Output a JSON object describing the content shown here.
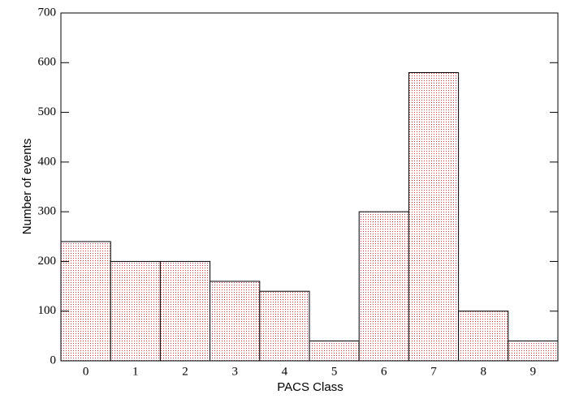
{
  "chart_data": {
    "type": "bar",
    "x_label": "PACS Class",
    "y_label": "Number of events",
    "categories": [
      "0",
      "1",
      "2",
      "3",
      "4",
      "5",
      "6",
      "7",
      "8",
      "9"
    ],
    "values": [
      240,
      200,
      200,
      160,
      140,
      40,
      300,
      580,
      100,
      40
    ],
    "color": "#c83232",
    "ylim": [
      0,
      700
    ],
    "yticks": [
      0,
      100,
      200,
      300,
      400,
      500,
      600,
      700
    ]
  }
}
